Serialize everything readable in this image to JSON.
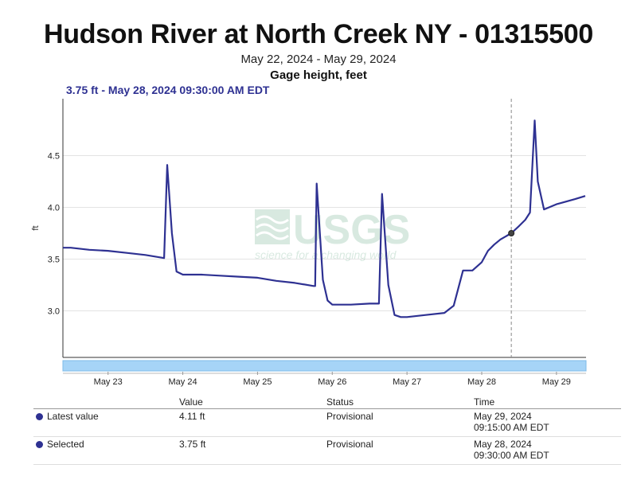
{
  "header": {
    "title": "Hudson River at North Creek NY - 01315500",
    "date_range": "May 22, 2024 - May 29, 2024",
    "parameter": "Gage height, feet",
    "selected_readout": "3.75 ft - May 28, 2024 09:30:00 AM EDT"
  },
  "chart_data": {
    "type": "line",
    "ylabel": "ft",
    "yticks": [
      "3.0",
      "3.5",
      "4.0",
      "4.5"
    ],
    "ylim": [
      2.55,
      5.05
    ],
    "xticks": [
      {
        "label": "May 23",
        "x": "2024-05-23T00:00"
      },
      {
        "label": "May 24",
        "x": "2024-05-24T00:00"
      },
      {
        "label": "May 25",
        "x": "2024-05-25T00:00"
      },
      {
        "label": "May 26",
        "x": "2024-05-26T00:00"
      },
      {
        "label": "May 27",
        "x": "2024-05-27T00:00"
      },
      {
        "label": "May 28",
        "x": "2024-05-28T00:00"
      },
      {
        "label": "May 29",
        "x": "2024-05-29T00:00"
      }
    ],
    "xlim": [
      "2024-05-22T09:30",
      "2024-05-29T09:30"
    ],
    "grid": true,
    "watermark": {
      "text": "USGS",
      "tagline": "science for a changing world"
    },
    "series": [
      {
        "color": "#2e3192",
        "x": [
          "2024-05-22T09:30",
          "2024-05-22T12:00",
          "2024-05-22T18:00",
          "2024-05-23T00:00",
          "2024-05-23T06:00",
          "2024-05-23T12:00",
          "2024-05-23T18:00",
          "2024-05-23T19:00",
          "2024-05-23T20:30",
          "2024-05-23T22:00",
          "2024-05-24T00:00",
          "2024-05-24T06:00",
          "2024-05-24T12:00",
          "2024-05-24T18:00",
          "2024-05-25T00:00",
          "2024-05-25T06:00",
          "2024-05-25T12:00",
          "2024-05-25T18:00",
          "2024-05-25T18:30",
          "2024-05-25T19:00",
          "2024-05-25T21:00",
          "2024-05-25T22:30",
          "2024-05-26T00:00",
          "2024-05-26T06:00",
          "2024-05-26T12:00",
          "2024-05-26T15:00",
          "2024-05-26T16:00",
          "2024-05-26T18:00",
          "2024-05-26T20:00",
          "2024-05-26T22:00",
          "2024-05-27T00:00",
          "2024-05-27T06:00",
          "2024-05-27T12:00",
          "2024-05-27T15:00",
          "2024-05-27T18:00",
          "2024-05-27T21:00",
          "2024-05-28T00:00",
          "2024-05-28T02:00",
          "2024-05-28T04:00",
          "2024-05-28T06:00",
          "2024-05-28T09:30",
          "2024-05-28T12:00",
          "2024-05-28T14:00",
          "2024-05-28T15:30",
          "2024-05-28T17:00",
          "2024-05-28T18:00",
          "2024-05-28T20:00",
          "2024-05-29T00:00",
          "2024-05-29T06:00",
          "2024-05-29T09:15"
        ],
        "y": [
          3.61,
          3.61,
          3.59,
          3.58,
          3.56,
          3.54,
          3.51,
          4.41,
          3.75,
          3.38,
          3.35,
          3.35,
          3.34,
          3.33,
          3.32,
          3.29,
          3.27,
          3.24,
          3.24,
          4.23,
          3.3,
          3.1,
          3.06,
          3.06,
          3.07,
          3.07,
          4.13,
          3.25,
          2.96,
          2.94,
          2.94,
          2.96,
          2.98,
          3.05,
          3.39,
          3.39,
          3.47,
          3.58,
          3.64,
          3.69,
          3.75,
          3.82,
          3.88,
          3.95,
          4.84,
          4.25,
          3.98,
          4.03,
          4.08,
          4.11
        ]
      }
    ],
    "selected_point": {
      "x": "2024-05-28T09:30",
      "y": 3.75
    }
  },
  "table": {
    "headers": [
      "",
      "Value",
      "Status",
      "Time"
    ],
    "rows": [
      {
        "label": "Latest value",
        "value": "4.11 ft",
        "status": "Provisional",
        "date": "May 29, 2024",
        "time": "09:15:00 AM EDT"
      },
      {
        "label": "Selected",
        "value": "3.75 ft",
        "status": "Provisional",
        "date": "May 28, 2024",
        "time": "09:30:00 AM EDT"
      }
    ]
  }
}
